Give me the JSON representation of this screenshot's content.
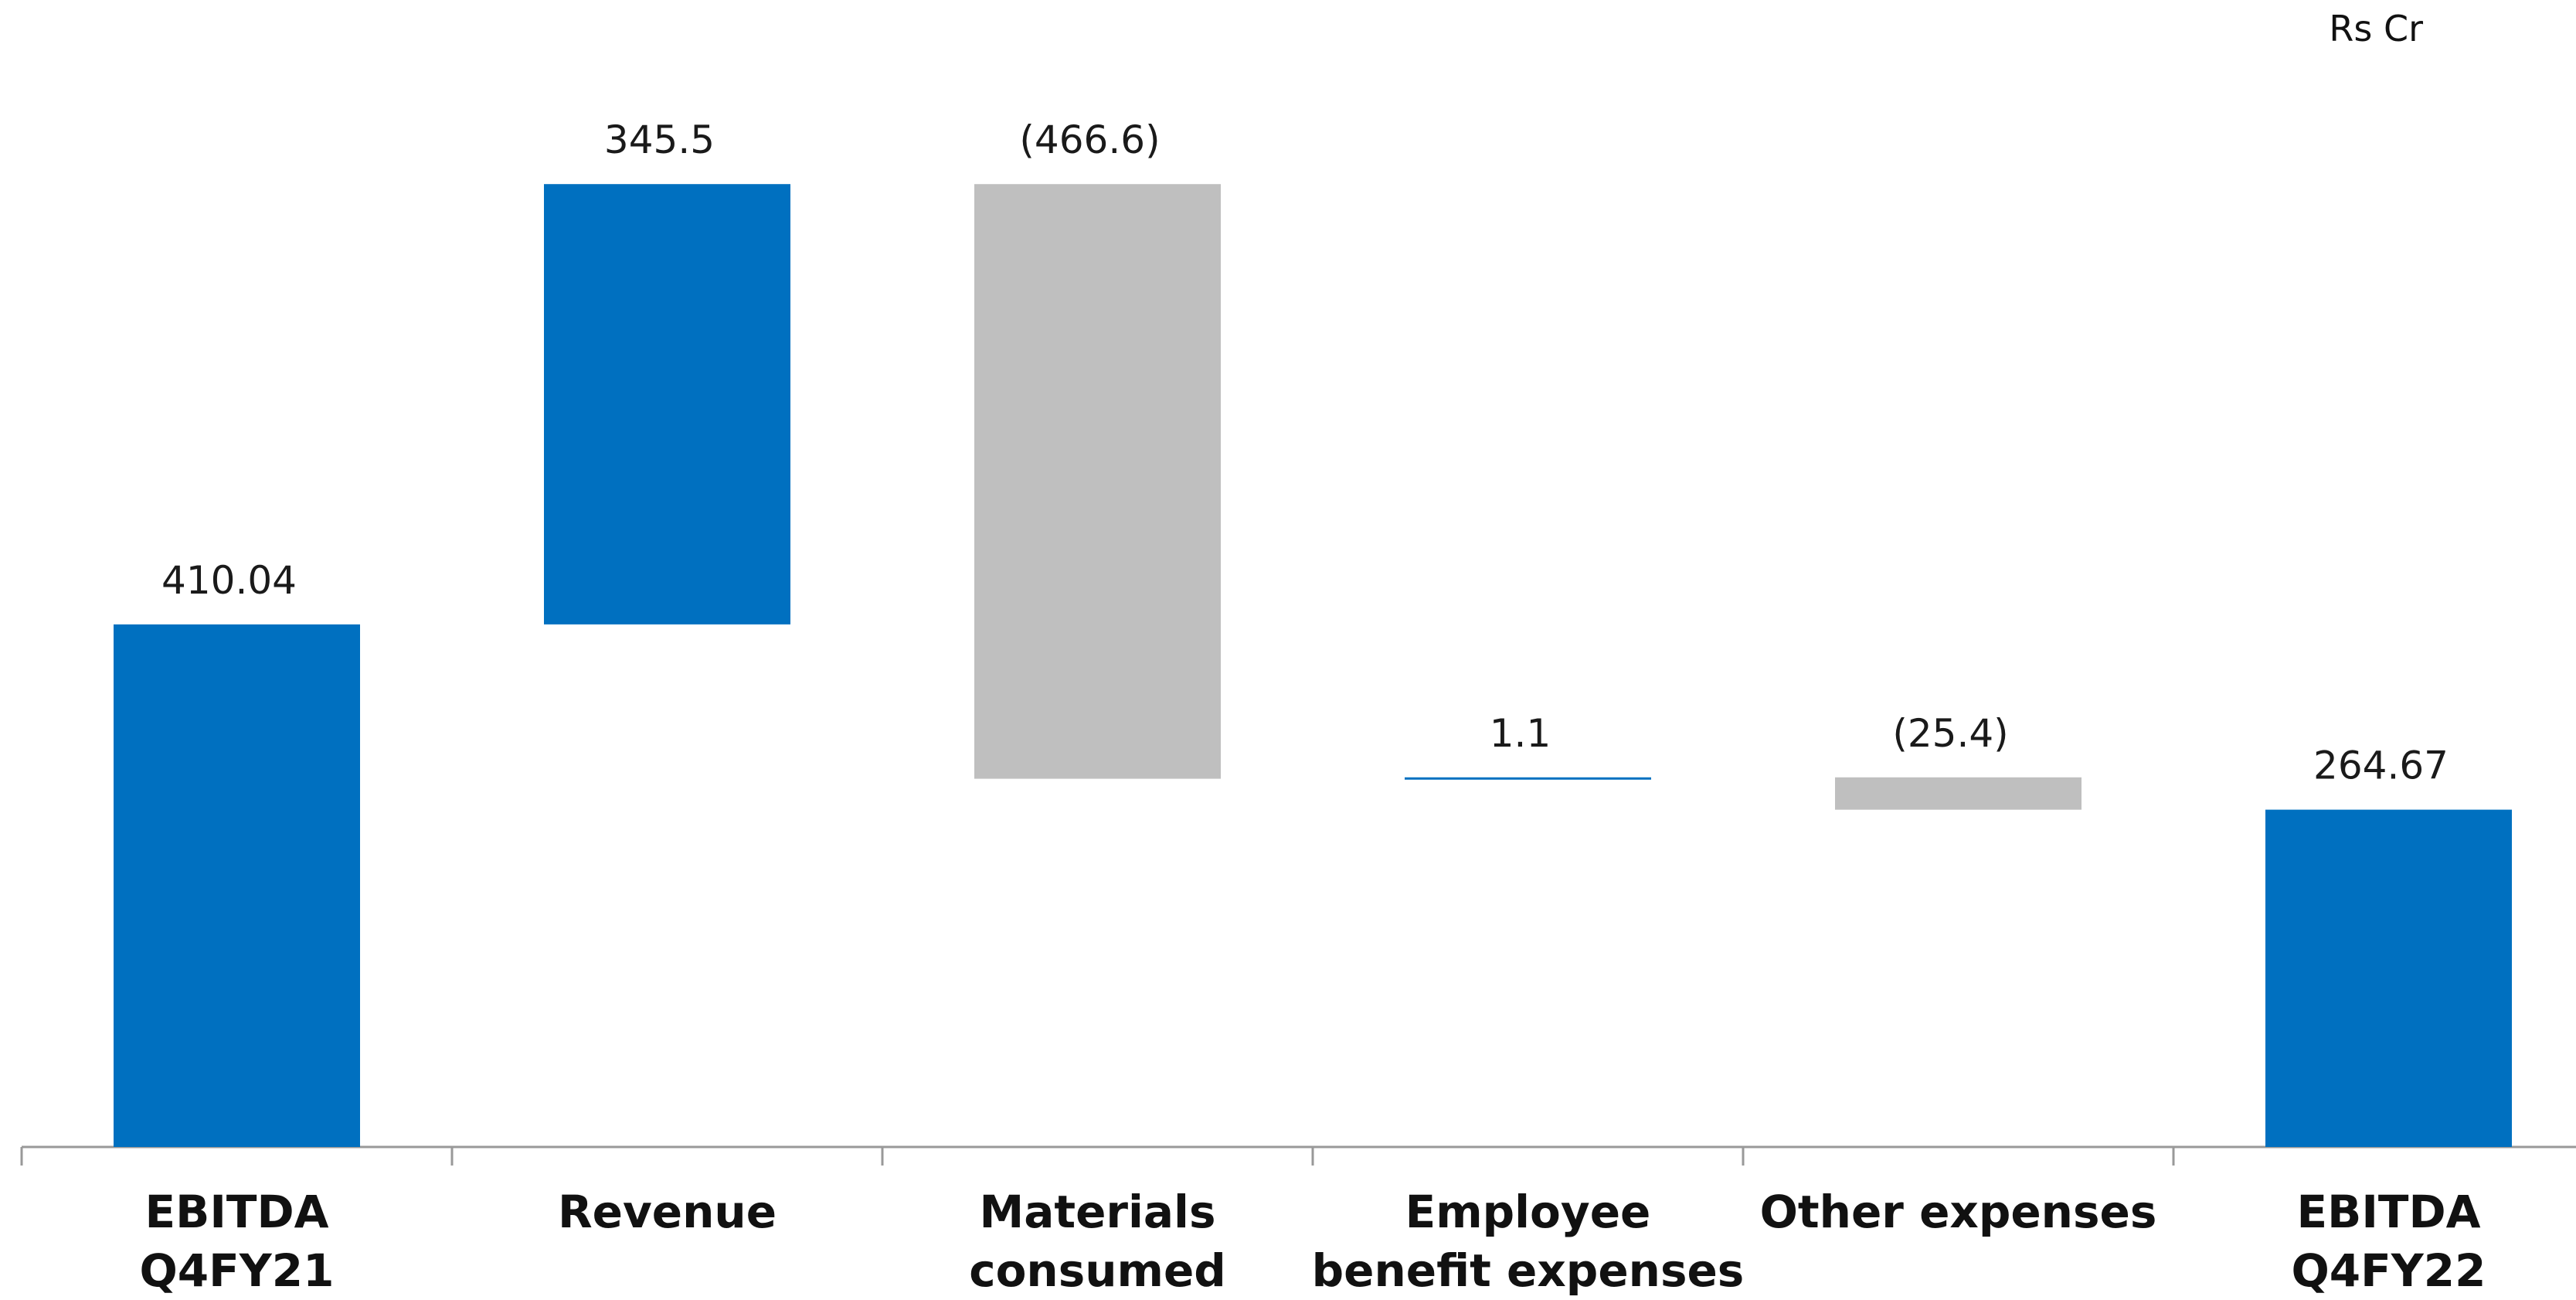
{
  "chart_data": {
    "type": "waterfall",
    "unit": "Rs Cr",
    "categories": [
      "EBITDA\nQ4FY21",
      "Revenue",
      "Materials\nconsumed",
      "Employee\nbenefit expenses",
      "Other expenses",
      "EBITDA\nQ4FY22"
    ],
    "values": [
      410.04,
      345.5,
      -466.6,
      1.1,
      -25.4,
      264.67
    ],
    "value_labels": [
      "410.04",
      "345.5",
      "(466.6)",
      "1.1",
      "(25.4)",
      "264.67"
    ],
    "measure": [
      "total",
      "relative",
      "relative",
      "relative",
      "relative",
      "total"
    ],
    "color_total": "#0070c0",
    "color_increase": "#0070c0",
    "color_decrease": "#bfbfbf",
    "ylim": [
      0,
      900
    ],
    "grid": false
  }
}
